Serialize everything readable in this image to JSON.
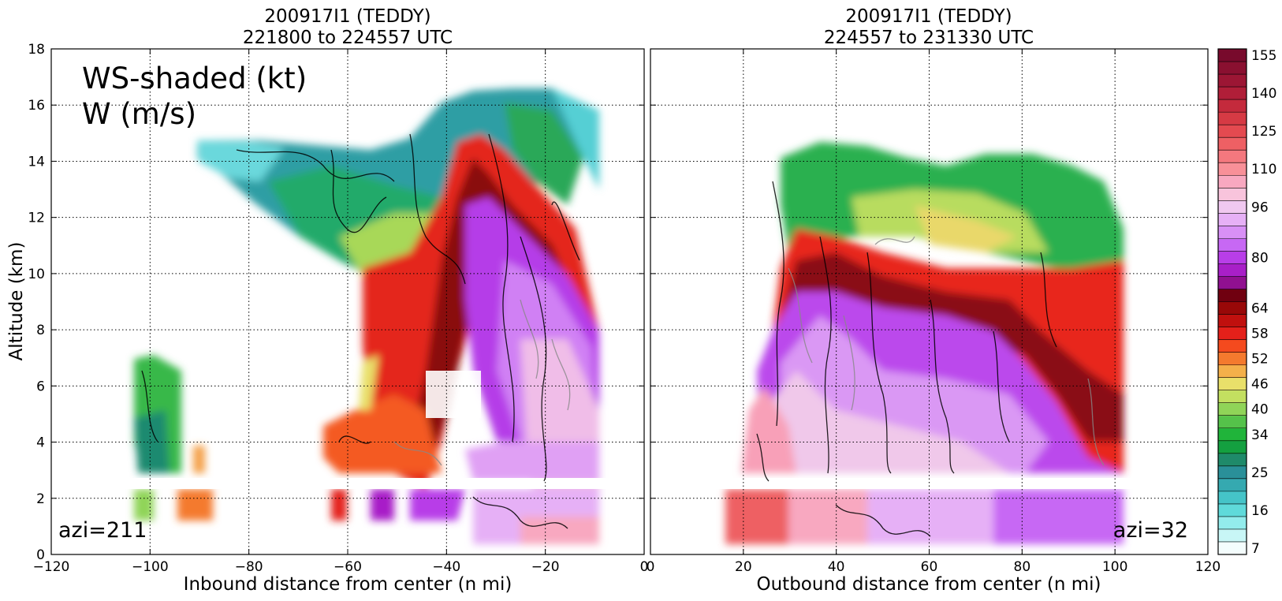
{
  "chart_data": [
    {
      "type": "heatmap",
      "title_line1": "200917I1 (TEDDY)",
      "title_line2": "221800 to 224557 UTC",
      "xlabel": "Inbound distance from center (n mi)",
      "ylabel": "Altitude (km)",
      "xlim": [
        -120,
        0
      ],
      "ylim": [
        0,
        18
      ],
      "xticks": [
        "−120",
        "−100",
        "−80",
        "−60",
        "−40",
        "−20",
        "0"
      ],
      "yticks": [
        "0",
        "2",
        "4",
        "6",
        "8",
        "10",
        "12",
        "14",
        "16",
        "18"
      ],
      "annotation_line1": "WS-shaded (kt)",
      "annotation_line2": "W (m/s)",
      "azimuth_label": "azi=211",
      "grid": true
    },
    {
      "type": "heatmap",
      "title_line1": "200917I1 (TEDDY)",
      "title_line2": "224557 to 231330 UTC",
      "xlabel": "Outbound distance from center (n mi)",
      "xlim": [
        0,
        120
      ],
      "ylim": [
        0,
        18
      ],
      "xticks": [
        "0",
        "20",
        "40",
        "60",
        "80",
        "100",
        "120"
      ],
      "azimuth_label": "azi=32",
      "grid": true
    }
  ],
  "colorbar": {
    "levels": [
      7,
      10,
      13,
      16,
      19,
      22,
      25,
      28,
      31,
      34,
      37,
      40,
      43,
      46,
      49,
      52,
      55,
      58,
      61,
      64,
      68,
      72,
      76,
      80,
      84,
      88,
      92,
      96,
      100,
      105,
      110,
      115,
      120,
      125,
      130,
      135,
      140,
      145,
      150,
      155,
      160
    ],
    "labels": [
      "7",
      "16",
      "25",
      "34",
      "40",
      "46",
      "52",
      "58",
      "64",
      "80",
      "96",
      "110",
      "125",
      "140",
      "155"
    ],
    "colors": [
      "#f4fdfd",
      "#c8f6f6",
      "#93ecec",
      "#5fdada",
      "#45c4c8",
      "#35a9b0",
      "#2a9099",
      "#1f8a6a",
      "#14a040",
      "#20b43a",
      "#55c24a",
      "#90d458",
      "#c3df60",
      "#e9e06a",
      "#f4b04a",
      "#f47a2e",
      "#f44a1e",
      "#e4201a",
      "#c0100e",
      "#980808",
      "#700010",
      "#901090",
      "#a81fc8",
      "#b83ee8",
      "#c768f4",
      "#d890f6",
      "#e6b0f6",
      "#f0c8f0",
      "#f8c4dc",
      "#f8a8c0",
      "#f89098",
      "#f4787e",
      "#ee6064",
      "#e44a50",
      "#d63a44",
      "#c42a3c",
      "#b01e38",
      "#9c1634",
      "#8a1030",
      "#780a2c"
    ]
  }
}
